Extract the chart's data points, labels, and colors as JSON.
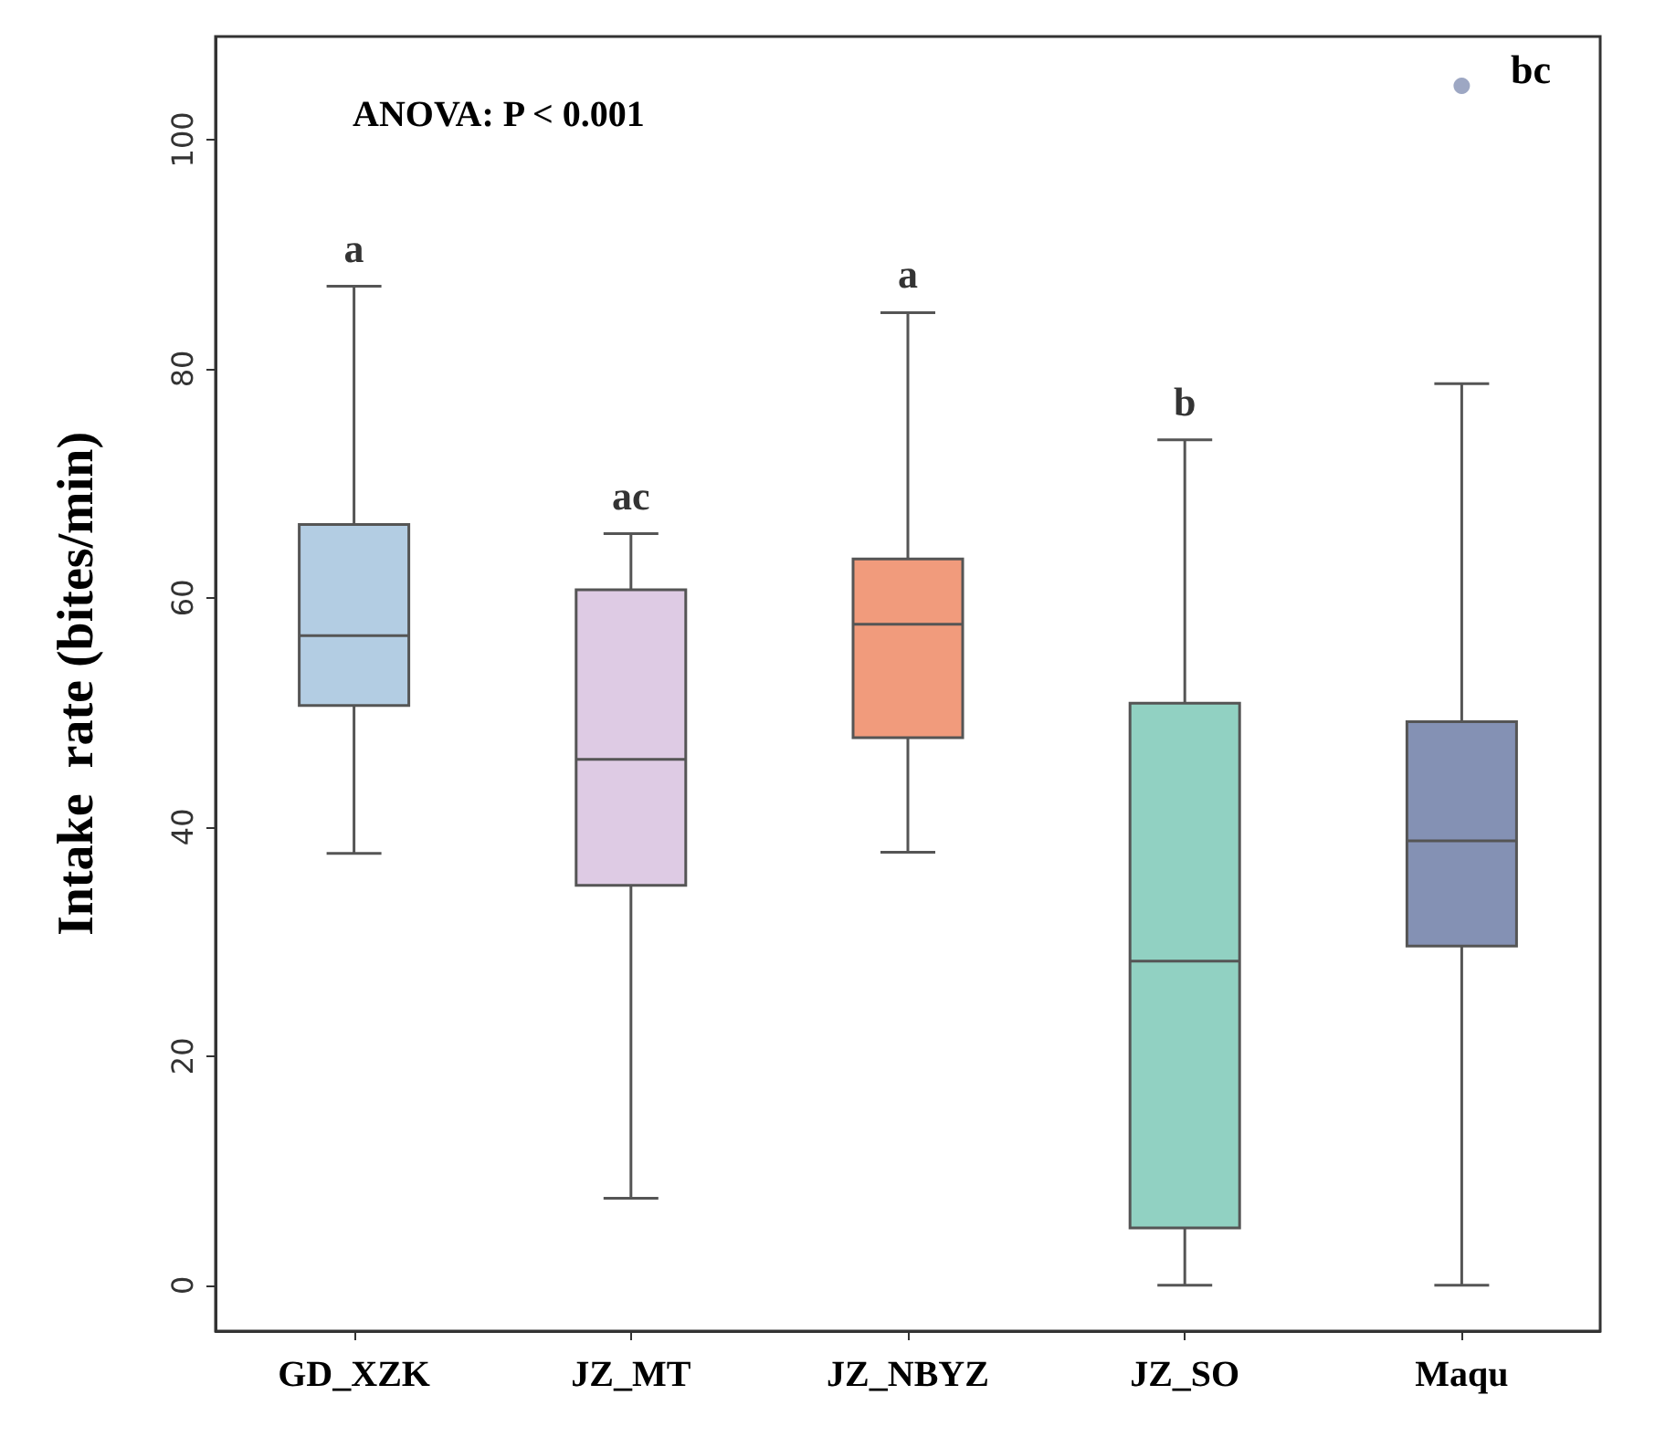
{
  "chart_data": {
    "type": "box",
    "ylabel": "Intake  rate (bites/min)",
    "categories": [
      "GD_XZK",
      "JZ_MT",
      "JZ_NBYZ",
      "JZ_SO",
      "Maqu"
    ],
    "boxes": [
      {
        "low": 37.7,
        "q1": 50.6,
        "median": 56.7,
        "q3": 66.4,
        "high": 87.2
      },
      {
        "low": 7.6,
        "q1": 34.9,
        "median": 45.9,
        "q3": 60.7,
        "high": 65.6
      },
      {
        "low": 37.8,
        "q1": 47.8,
        "median": 57.7,
        "q3": 63.4,
        "high": 84.9
      },
      {
        "low": 0,
        "q1": 5.0,
        "median": 28.3,
        "q3": 50.8,
        "high": 73.8
      },
      {
        "low": 0,
        "q1": 29.6,
        "median": 38.8,
        "q3": 49.2,
        "high": 78.7,
        "outliers": [
          104.7
        ]
      }
    ],
    "colors": [
      "#b3cde3",
      "#decbe4",
      "#f19b7c",
      "#91d1c2",
      "#8491b4"
    ],
    "ylim": [
      -4,
      109
    ],
    "yticks": [
      0,
      20,
      40,
      60,
      80,
      100
    ],
    "annotations": [
      "ANOVA: P < 0.001",
      {
        "text": "a",
        "x": "GD_XZK",
        "y": 87.2
      },
      {
        "text": "ac",
        "x": "JZ_MT",
        "y": 65.6
      },
      {
        "text": "a",
        "x": "JZ_NBYZ",
        "y": 84.9
      },
      {
        "text": "b",
        "x": "JZ_SO",
        "y": 73.8
      },
      "bc"
    ]
  }
}
